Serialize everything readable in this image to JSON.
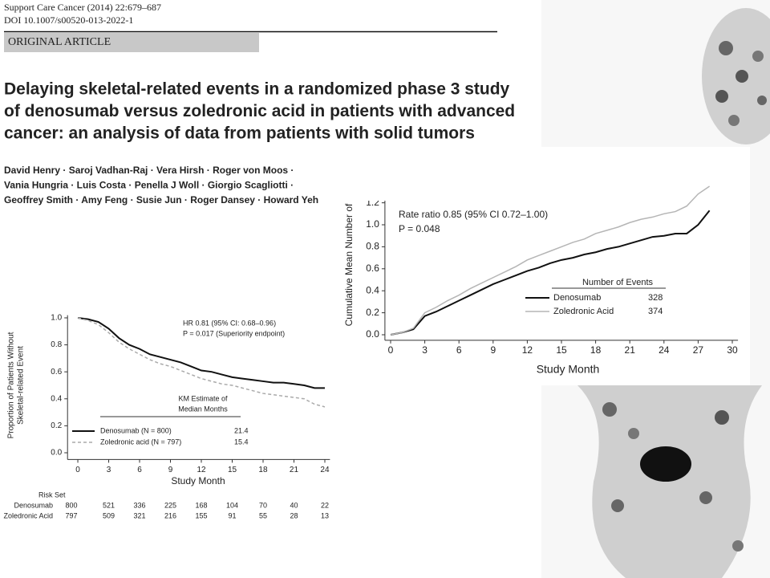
{
  "header": {
    "journal": "Support Care Cancer (2014) 22:679–687",
    "doi": "DOI 10.1007/s00520-013-2022-1",
    "section": "ORIGINAL ARTICLE"
  },
  "title_lines": [
    "Delaying skeletal-related events in a randomized phase 3 study",
    "of denosumab versus zoledronic acid in patients with advanced",
    "cancer: an analysis of data from patients with solid tumors"
  ],
  "author_lines": [
    "David Henry · Saroj Vadhan-Raj · Vera Hirsh · Roger von Moos ·",
    "Vania Hungria · Luis Costa · Penella J Woll · Giorgio Scagliotti ·",
    "Geoffrey Smith · Amy Feng · Susie Jun · Roger Dansey · Howard Yeh"
  ],
  "chart_data": [
    {
      "type": "line",
      "y_label_lines": [
        "Proportion of Patients Without",
        "Skeletal-related Event"
      ],
      "x_label": "Study Month",
      "annotations": [
        "HR 0.81 (95% CI: 0.68–0.96)",
        "P = 0.017 (Superiority endpoint)"
      ],
      "legend_title": [
        "KM Estimate of",
        "Median Months"
      ],
      "risk_set_title": "Risk Set",
      "xlim": [
        -1,
        24.5
      ],
      "xticks": [
        0,
        3,
        6,
        9,
        12,
        15,
        18,
        21,
        24
      ],
      "ylim": [
        -0.05,
        1.02
      ],
      "yticks": [
        {
          "value": 0,
          "label": "0.0"
        },
        {
          "value": 0.2,
          "label": "0.2"
        },
        {
          "value": 0.4,
          "label": "0.4"
        },
        {
          "value": 0.6,
          "label": "0.6"
        },
        {
          "value": 0.8,
          "label": "0.8"
        },
        {
          "value": 1,
          "label": "1.0"
        }
      ],
      "x": [
        0,
        1,
        2,
        3,
        4,
        5,
        6,
        7,
        8,
        9,
        10,
        11,
        12,
        13,
        14,
        15,
        16,
        17,
        18,
        19,
        20,
        21,
        22,
        23,
        24
      ],
      "series": [
        {
          "name": "Denosumab (N = 800)",
          "risk_name": "Denosumab",
          "median": 21.4,
          "color": "#111111",
          "dash": false,
          "values": [
            1.0,
            0.99,
            0.97,
            0.92,
            0.85,
            0.8,
            0.77,
            0.73,
            0.71,
            0.69,
            0.67,
            0.64,
            0.61,
            0.6,
            0.58,
            0.56,
            0.55,
            0.54,
            0.53,
            0.52,
            0.52,
            0.51,
            0.5,
            0.48,
            0.48
          ],
          "at_risk": [
            800,
            521,
            336,
            225,
            168,
            104,
            70,
            40,
            22
          ]
        },
        {
          "name": "Zoledronic acid (N = 797)",
          "risk_name": "Zoledronic Acid",
          "median": 15.4,
          "color": "#aaaaaa",
          "dash": true,
          "values": [
            1.0,
            0.98,
            0.95,
            0.89,
            0.82,
            0.77,
            0.73,
            0.69,
            0.66,
            0.64,
            0.61,
            0.58,
            0.55,
            0.53,
            0.51,
            0.5,
            0.48,
            0.46,
            0.44,
            0.43,
            0.42,
            0.41,
            0.4,
            0.36,
            0.34
          ],
          "at_risk": [
            797,
            509,
            321,
            216,
            155,
            91,
            55,
            28,
            13
          ]
        }
      ]
    },
    {
      "type": "line",
      "y_label_lines": [
        "Cumulative Mean Number of"
      ],
      "x_label": "Study Month",
      "annotations": [
        "Rate ratio 0.85 (95% CI 0.72–1.00)",
        "P = 0.048"
      ],
      "legend_title": [
        "Number of Events"
      ],
      "xlim": [
        -0.5,
        30.5
      ],
      "xticks": [
        0,
        3,
        6,
        9,
        12,
        15,
        18,
        21,
        24,
        27,
        30
      ],
      "ylim": [
        -0.05,
        1.4
      ],
      "yticks": [
        {
          "value": 0,
          "label": "0.0"
        },
        {
          "value": 0.2,
          "label": "0.2"
        },
        {
          "value": 0.4,
          "label": "0.4"
        },
        {
          "value": 0.6,
          "label": "0.6"
        },
        {
          "value": 0.8,
          "label": "0.8"
        },
        {
          "value": 1,
          "label": "1.0"
        },
        {
          "value": 1.2,
          "label": "1.2"
        }
      ],
      "x": [
        0,
        1,
        2,
        3,
        4,
        5,
        6,
        7,
        8,
        9,
        10,
        11,
        12,
        13,
        14,
        15,
        16,
        17,
        18,
        19,
        20,
        21,
        22,
        23,
        24,
        25,
        26,
        27,
        28
      ],
      "series": [
        {
          "name": "Denosumab",
          "events": 328,
          "color": "#111111",
          "dash": false,
          "values": [
            0,
            0.02,
            0.05,
            0.17,
            0.21,
            0.26,
            0.31,
            0.36,
            0.41,
            0.46,
            0.5,
            0.54,
            0.58,
            0.61,
            0.65,
            0.68,
            0.7,
            0.73,
            0.75,
            0.78,
            0.8,
            0.83,
            0.86,
            0.89,
            0.9,
            0.92,
            0.92,
            1.0,
            1.13
          ]
        },
        {
          "name": "Zoledronic Acid",
          "events": 374,
          "color": "#b5b5b5",
          "dash": false,
          "values": [
            0,
            0.02,
            0.06,
            0.2,
            0.25,
            0.31,
            0.36,
            0.42,
            0.47,
            0.52,
            0.57,
            0.62,
            0.68,
            0.72,
            0.76,
            0.8,
            0.84,
            0.87,
            0.92,
            0.95,
            0.98,
            1.02,
            1.05,
            1.07,
            1.1,
            1.12,
            1.17,
            1.28,
            1.35
          ]
        }
      ]
    }
  ]
}
